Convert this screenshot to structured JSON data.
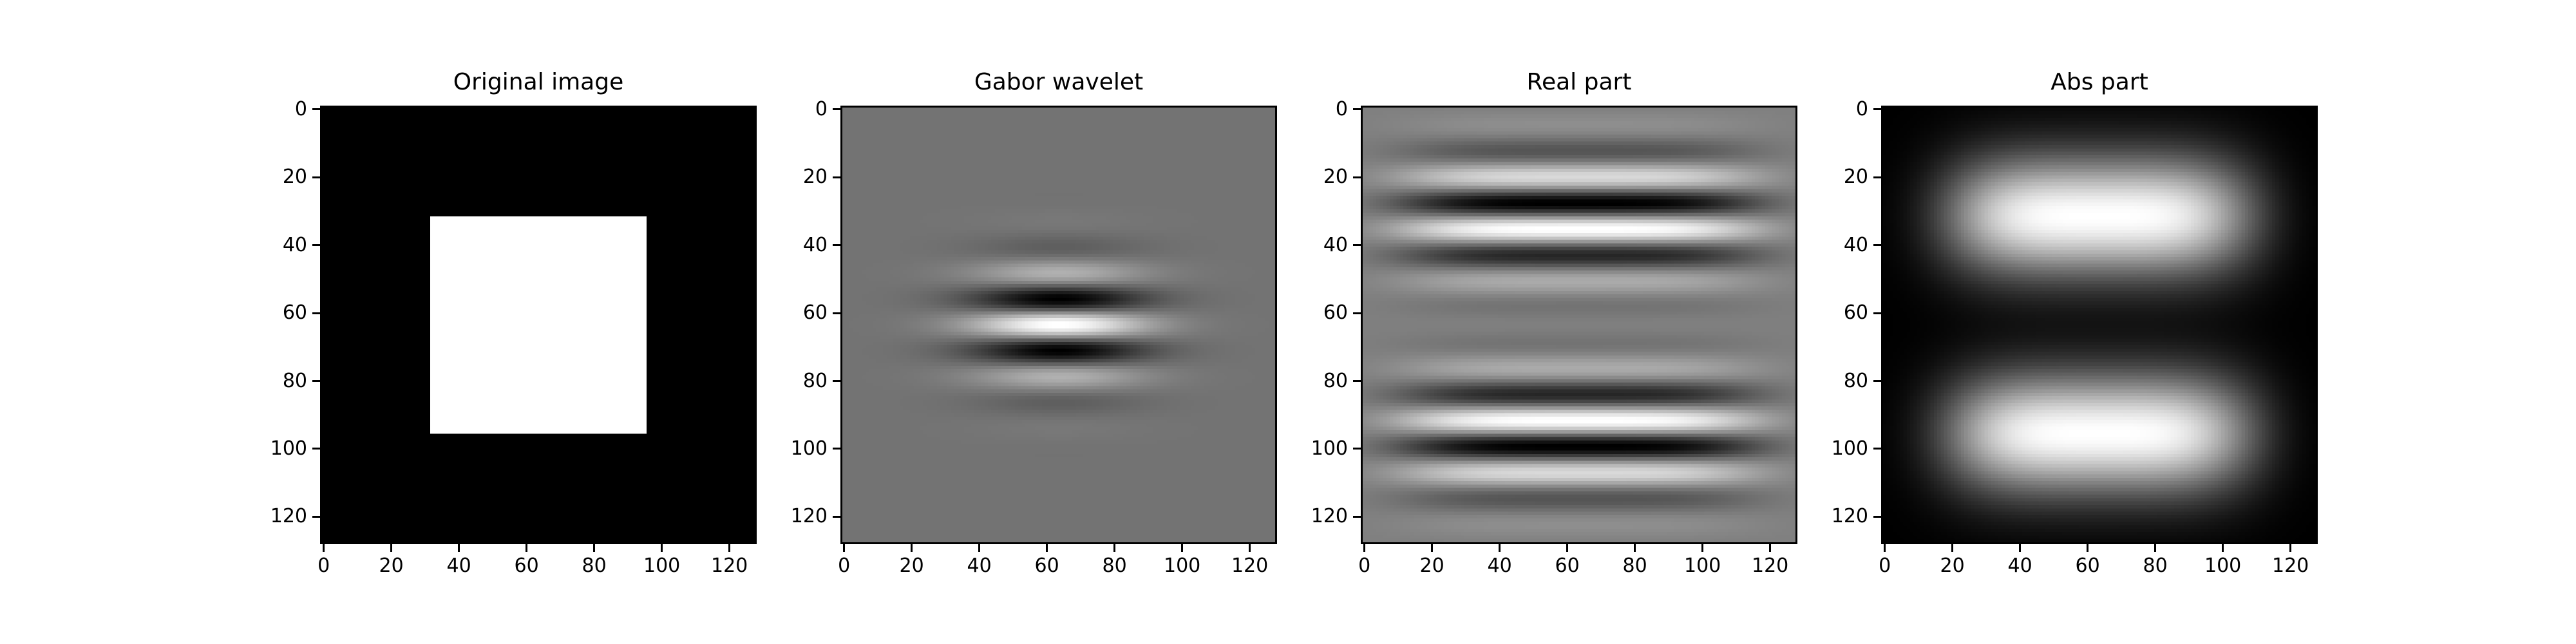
{
  "figure": {
    "background": "#ffffff",
    "ink_color": "#000000",
    "colormap": "gray",
    "panel_mid_gray": "#787878",
    "description": "Matplotlib-style figure with four square grayscale image subplots demonstrating Gabor wavelet filtering of a 128x128 image"
  },
  "chart_data": [
    {
      "type": "heatmap",
      "title": "Original image",
      "x_ticks": [
        0,
        20,
        40,
        60,
        80,
        100,
        120
      ],
      "y_ticks": [
        0,
        20,
        40,
        60,
        80,
        100,
        120
      ],
      "xlim": [
        -0.5,
        127.5
      ],
      "ylim": [
        127.5,
        -0.5
      ],
      "grid": false,
      "size": [
        128,
        128
      ],
      "render": {
        "kind": "box",
        "outside_value": 0,
        "inside_value": 1,
        "x_range": [
          32,
          96
        ],
        "y_range": [
          32,
          96
        ]
      },
      "description": "Black 128x128 image with a white square covering rows/cols 32-95"
    },
    {
      "type": "heatmap",
      "title": "Gabor wavelet",
      "x_ticks": [
        0,
        20,
        40,
        60,
        80,
        100,
        120
      ],
      "y_ticks": [
        0,
        20,
        40,
        60,
        80,
        100,
        120
      ],
      "xlim": [
        -0.5,
        127.5
      ],
      "ylim": [
        127.5,
        -0.5
      ],
      "grid": false,
      "size": [
        128,
        128
      ],
      "render": {
        "kind": "gabor",
        "frequency": 0.0625,
        "center": [
          63.5,
          63.5
        ],
        "sigma_x": 18,
        "sigma_y": 12,
        "orientation": "horizontal-bands"
      },
      "description": "Horizontally-striped Gabor kernel on mid-gray background: white central band at y=64 flanked by black bands (y~56, y~72) and fading oscillations"
    },
    {
      "type": "heatmap",
      "title": "Real part",
      "x_ticks": [
        0,
        20,
        40,
        60,
        80,
        100,
        120
      ],
      "y_ticks": [
        0,
        20,
        40,
        60,
        80,
        100,
        120
      ],
      "xlim": [
        -0.5,
        127.5
      ],
      "ylim": [
        127.5,
        -0.5
      ],
      "grid": false,
      "size": [
        128,
        128
      ],
      "render": {
        "kind": "edge_response_real",
        "frequency": 0.0625,
        "edge_rows": [
          31.5,
          95.5
        ],
        "sigma_y": 13,
        "x_center": 63.5,
        "x_envelope_width": 52,
        "x_envelope_power": 4
      },
      "description": "Oscillatory band groups around the square's top edge (dark band ~y=28, bright ~y=36) and bottom edge (bright ~y=93, dark ~y=102) on mid-gray background"
    },
    {
      "type": "heatmap",
      "title": "Abs part",
      "x_ticks": [
        0,
        20,
        40,
        60,
        80,
        100,
        120
      ],
      "y_ticks": [
        0,
        20,
        40,
        60,
        80,
        100,
        120
      ],
      "xlim": [
        -0.5,
        127.5
      ],
      "ylim": [
        127.5,
        -0.5
      ],
      "grid": false,
      "size": [
        128,
        128
      ],
      "render": {
        "kind": "edge_response_abs",
        "edge_rows": [
          31.5,
          95.5
        ],
        "sigma_y": 12.5,
        "x_center": 63.5,
        "x_envelope_width": 45,
        "x_envelope_power": 4
      },
      "description": "Two soft horizontally-elongated white blobs centered near (64,32) and (64,96) on black background with dark gap at y~64"
    }
  ]
}
